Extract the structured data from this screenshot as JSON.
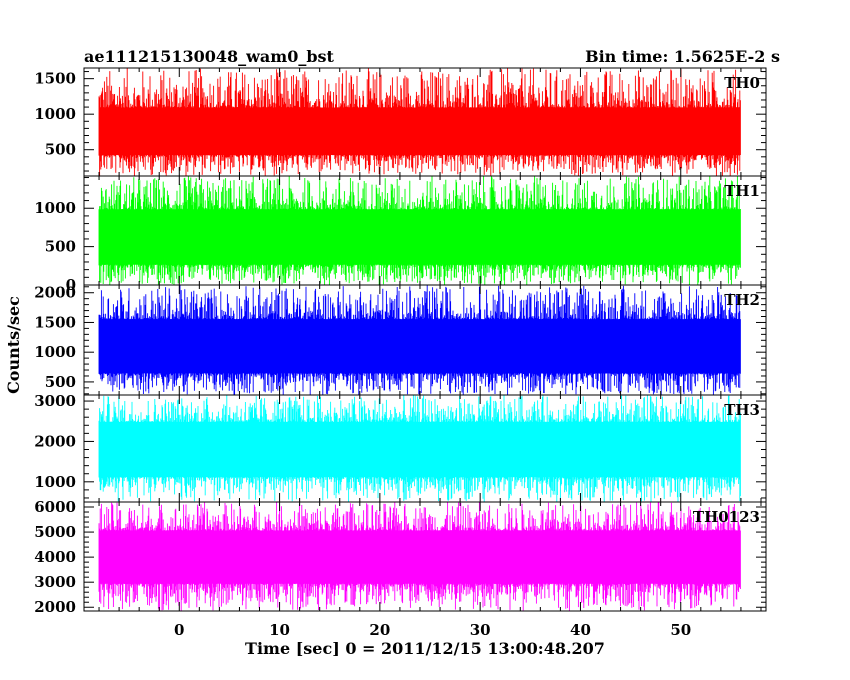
{
  "chart_data": {
    "type": "line",
    "title": "ae111215130048_wam0_bst",
    "subtitle": "Bin time: 1.5625E-2 s",
    "xlabel": "Time [sec] 0 = 2011/12/15 13:00:48.207",
    "ylabel": "Counts/sec",
    "xlim": [
      -9.5,
      58.5
    ],
    "data_x_range": [
      -8,
      56
    ],
    "x_ticks": [
      0,
      10,
      20,
      30,
      40,
      50
    ],
    "x_tick_labels": [
      "0",
      "10",
      "20",
      "30",
      "40",
      "50"
    ],
    "grid": false,
    "panels": [
      {
        "name": "TH0",
        "color": "#ff0000",
        "ylim": [
          130,
          1650
        ],
        "y_ticks": [
          500,
          1000,
          1500
        ],
        "y_tick_labels": [
          "500",
          "1000",
          "1500"
        ],
        "typical_range": [
          320,
          1200
        ],
        "peak_range": [
          130,
          1650
        ]
      },
      {
        "name": "TH1",
        "color": "#00ff00",
        "ylim": [
          0,
          1420
        ],
        "y_ticks": [
          0,
          500,
          1000
        ],
        "y_tick_labels": [
          "0",
          "500",
          "1000"
        ],
        "typical_range": [
          150,
          1100
        ],
        "peak_range": [
          0,
          1420
        ]
      },
      {
        "name": "TH2",
        "color": "#0000ff",
        "ylim": [
          280,
          2130
        ],
        "y_ticks": [
          500,
          1000,
          1500,
          2000
        ],
        "y_tick_labels": [
          "500",
          "1000",
          "1500",
          "2000"
        ],
        "typical_range": [
          500,
          1700
        ],
        "peak_range": [
          280,
          2130
        ]
      },
      {
        "name": "TH3",
        "color": "#00ffff",
        "ylim": [
          500,
          3150
        ],
        "y_ticks": [
          1000,
          2000,
          3000
        ],
        "y_tick_labels": [
          "1000",
          "2000",
          "3000"
        ],
        "typical_range": [
          900,
          2700
        ],
        "peak_range": [
          500,
          3150
        ]
      },
      {
        "name": "TH0123",
        "color": "#ff00ff",
        "ylim": [
          1850,
          6200
        ],
        "y_ticks": [
          2000,
          3000,
          4000,
          5000,
          6000
        ],
        "y_tick_labels": [
          "2000",
          "3000",
          "4000",
          "5000",
          "6000"
        ],
        "typical_range": [
          2600,
          5400
        ],
        "peak_range": [
          1850,
          6200
        ]
      }
    ]
  }
}
